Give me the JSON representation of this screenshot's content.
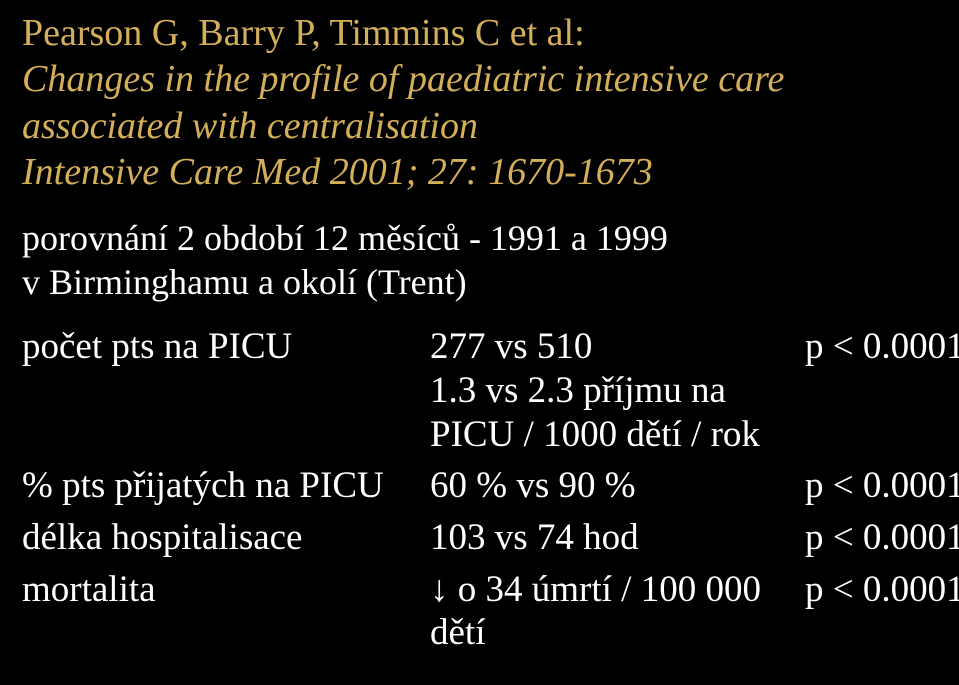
{
  "title": {
    "line1": "Pearson G, Barry P, Timmins C et al:",
    "line2": "Changes in the profile of paediatric intensive care associated with centralisation",
    "line3": "Intensive Care Med 2001; 27: 1670-1673",
    "color": "#d4af5a"
  },
  "body": {
    "line1": "porovnání 2 období 12 měsíců - 1991 a 1999",
    "line2": "v Birminghamu a okolí (Trent)",
    "color": "#ffffff"
  },
  "table": {
    "font_size": 37,
    "text_color": "#ffffff",
    "rows": [
      {
        "label": "počet pts na PICU",
        "value": "277 vs 510\n1.3 vs 2.3 příjmu na\nPICU / 1000 dětí / rok",
        "p": "p < 0.0001"
      },
      {
        "label": "% pts přijatých na PICU",
        "value": "60 % vs 90 %",
        "p": "p < 0.0001"
      },
      {
        "label": "délka hospitalisace",
        "value": "103 vs 74 hod",
        "p": "p < 0.0001"
      },
      {
        "label": "mortalita",
        "value": "↓ o 34 úmrtí / 100 000 dětí",
        "p": "p < 0.0001"
      }
    ]
  },
  "background_color": "#000000"
}
